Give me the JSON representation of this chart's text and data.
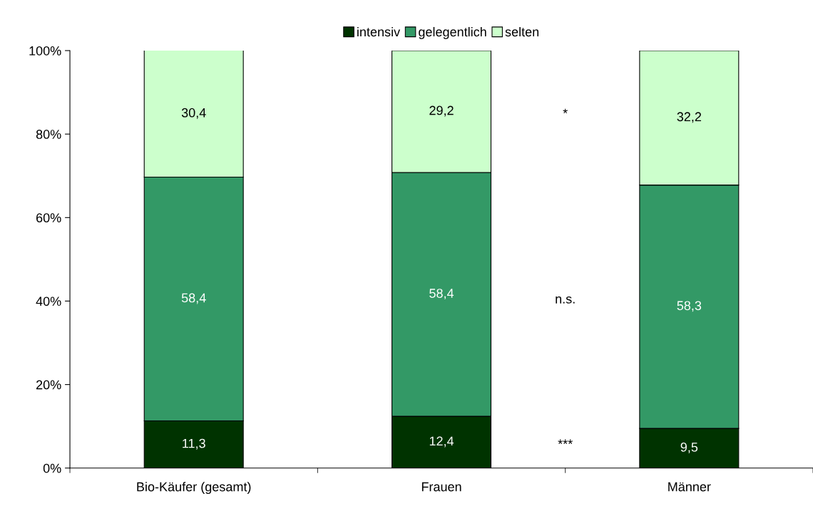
{
  "chart_data": {
    "type": "bar",
    "stacked": true,
    "categories": [
      "Bio-Käufer (gesamt)",
      "Frauen",
      "Männer"
    ],
    "series": [
      {
        "name": "intensiv",
        "color": "#003300",
        "values": [
          11.3,
          12.4,
          9.5
        ],
        "value_labels": [
          "11,3",
          "12,4",
          "9,5"
        ]
      },
      {
        "name": "gelegentlich",
        "color": "#339966",
        "values": [
          58.4,
          58.4,
          58.3
        ],
        "value_labels": [
          "58,4",
          "58,4",
          "58,3"
        ]
      },
      {
        "name": "selten",
        "color": "#ccffcc",
        "values": [
          30.4,
          29.2,
          32.2
        ],
        "value_labels": [
          "30,4",
          "29,2",
          "32,2"
        ]
      }
    ],
    "ylim": [
      0,
      100
    ],
    "yticks": [
      {
        "value": 0,
        "label": "0%"
      },
      {
        "value": 20,
        "label": "20%"
      },
      {
        "value": 40,
        "label": "40%"
      },
      {
        "value": 60,
        "label": "60%"
      },
      {
        "value": 80,
        "label": "80%"
      },
      {
        "value": 100,
        "label": "100%"
      }
    ],
    "annotations": [
      "*",
      "n.s.",
      "***"
    ],
    "legend": "top",
    "grid": false
  }
}
